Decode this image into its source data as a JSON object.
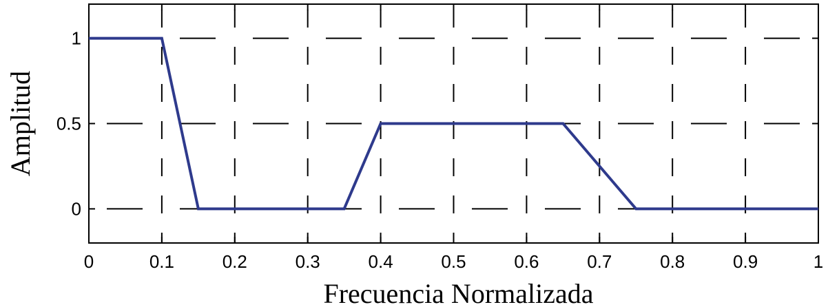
{
  "chart_data": {
    "type": "line",
    "title": "",
    "xlabel": "Frecuencia Normalizada",
    "ylabel": "Amplitud",
    "xlim": [
      0,
      1
    ],
    "ylim": [
      -0.2,
      1.2
    ],
    "grid": true,
    "grid_style": "dashed",
    "x_ticks": [
      0,
      0.1,
      0.2,
      0.3,
      0.4,
      0.5,
      0.6,
      0.7,
      0.8,
      0.9,
      1
    ],
    "x_tick_labels": [
      "0",
      "0.1",
      "0.2",
      "0.3",
      "0.4",
      "0.5",
      "0.6",
      "0.7",
      "0.8",
      "0.9",
      "1"
    ],
    "y_ticks": [
      0,
      0.5,
      1
    ],
    "y_tick_labels": [
      "0",
      "0.5",
      "1"
    ],
    "series": [
      {
        "color": "#2e3a8c",
        "x": [
          0,
          0.1,
          0.15,
          0.35,
          0.4,
          0.65,
          0.75,
          1
        ],
        "y": [
          1,
          1,
          0,
          0,
          0.5,
          0.5,
          0,
          0
        ]
      }
    ]
  }
}
